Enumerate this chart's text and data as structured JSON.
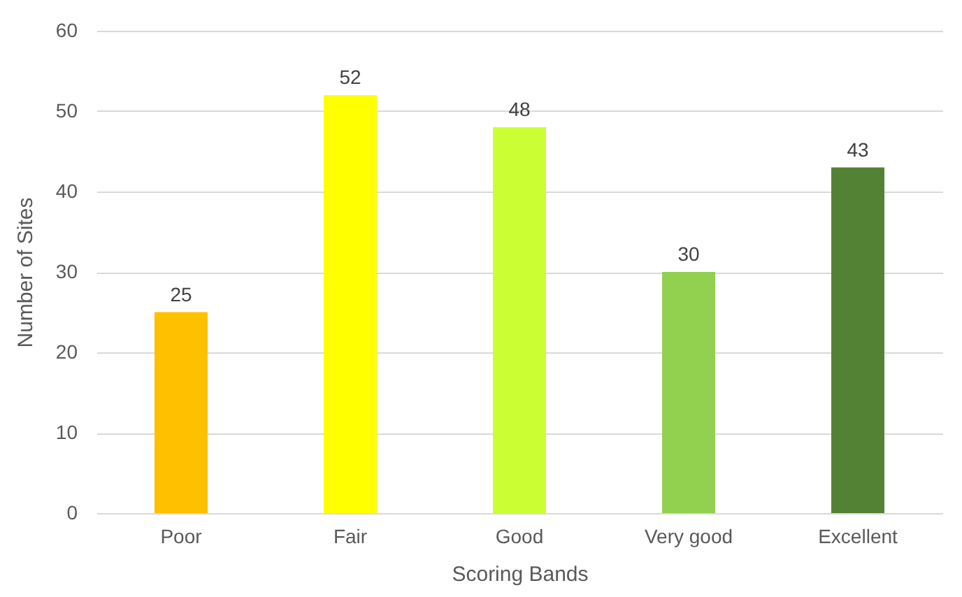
{
  "chart_data": {
    "type": "bar",
    "xlabel": "Scoring Bands",
    "ylabel": "Number of Sites",
    "categories": [
      "Poor",
      "Fair",
      "Good",
      "Very good",
      "Excellent"
    ],
    "values": [
      25,
      52,
      48,
      30,
      43
    ],
    "colors": [
      "#ffc000",
      "#ffff00",
      "#ccff33",
      "#92d050",
      "#548235"
    ],
    "ylim": [
      0,
      60
    ],
    "yticks": [
      0,
      10,
      20,
      30,
      40,
      50,
      60
    ],
    "grid": "y",
    "data_labels": true
  }
}
